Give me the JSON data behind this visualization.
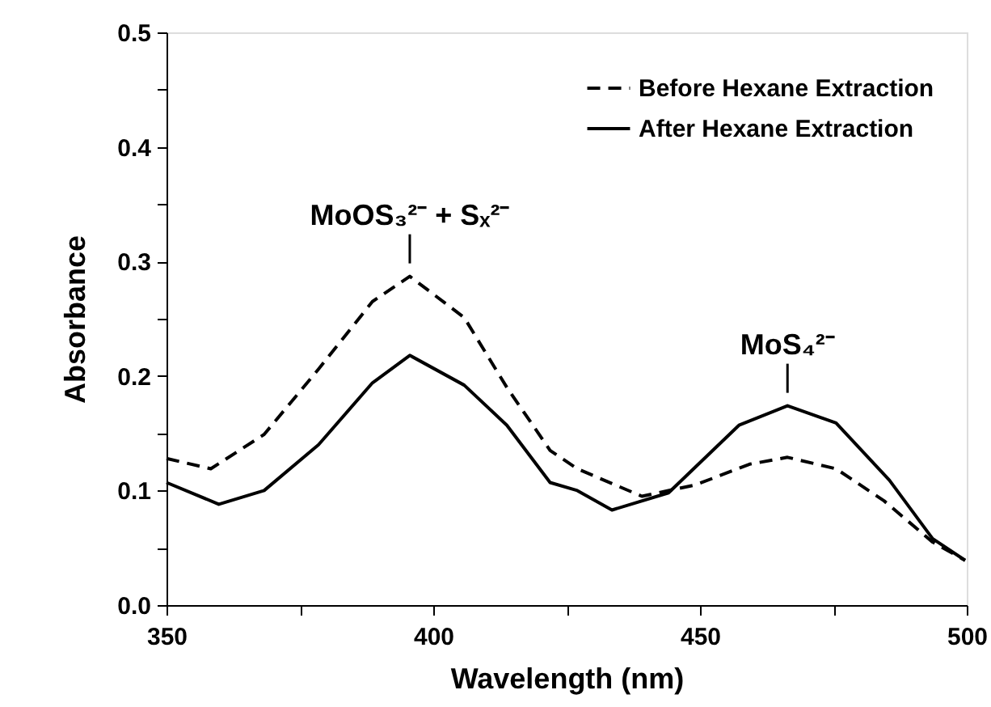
{
  "chart_data": {
    "type": "line",
    "xlabel": "Wavelength (nm)",
    "ylabel": "Absorbance",
    "xlim": [
      350,
      500
    ],
    "xticks": [
      350,
      {
        "value": 375,
        "label": null
      },
      400,
      {
        "value": 425,
        "label": null
      },
      450,
      {
        "value": 475,
        "label": null
      },
      500
    ],
    "ylim": [
      0,
      0.5
    ],
    "yticks": [
      {
        "value": 0,
        "label": "0.0"
      },
      {
        "value": 0.05,
        "label": null
      },
      {
        "value": 0.1,
        "label": "0.1"
      },
      {
        "value": 0.15,
        "label": null
      },
      {
        "value": 0.2,
        "label": "0.2"
      },
      {
        "value": 0.25,
        "label": null
      },
      {
        "value": 0.3,
        "label": "0.3"
      },
      {
        "value": 0.35,
        "label": null
      },
      {
        "value": 0.4,
        "label": "0.4"
      },
      {
        "value": 0.45,
        "label": null
      },
      {
        "value": 0.5,
        "label": "0.5"
      }
    ],
    "grid": false,
    "legend": "top right",
    "marker": "none",
    "series": [
      {
        "name": "Before Hexane Extraction",
        "color": "#000000",
        "line_style": "dashed",
        "x": [
          350,
          358.3,
          368.3,
          378.5,
          388.6,
          395.6,
          405.8,
          413.8,
          421.9,
          427,
          439.1,
          449.2,
          459.3,
          466.4,
          475.5,
          484.5,
          493.6,
          499.7
        ],
        "values": [
          0.128,
          0.119,
          0.149,
          0.206,
          0.265,
          0.287,
          0.251,
          0.19,
          0.135,
          0.119,
          0.095,
          0.105,
          0.123,
          0.129,
          0.119,
          0.091,
          0.055,
          0.039
        ]
      },
      {
        "name": "After Hexane Extraction",
        "color": "#000000",
        "line_style": "solid",
        "x": [
          350,
          359.8,
          368.3,
          378.5,
          388.6,
          395.6,
          405.8,
          413.8,
          421.9,
          427,
          433.5,
          444.1,
          457.3,
          466.4,
          475.5,
          485.5,
          493.6,
          499.7
        ],
        "values": [
          0.107,
          0.088,
          0.1,
          0.14,
          0.194,
          0.218,
          0.192,
          0.157,
          0.107,
          0.1,
          0.083,
          0.098,
          0.157,
          0.174,
          0.159,
          0.109,
          0.058,
          0.039
        ]
      }
    ],
    "annotations": [
      {
        "text": "MoOS₃²⁻ + Sₓ²⁻",
        "x": 395.6,
        "y": 0.287
      },
      {
        "text": "MoS₄²⁻",
        "x": 466.4,
        "y": 0.174
      }
    ]
  }
}
